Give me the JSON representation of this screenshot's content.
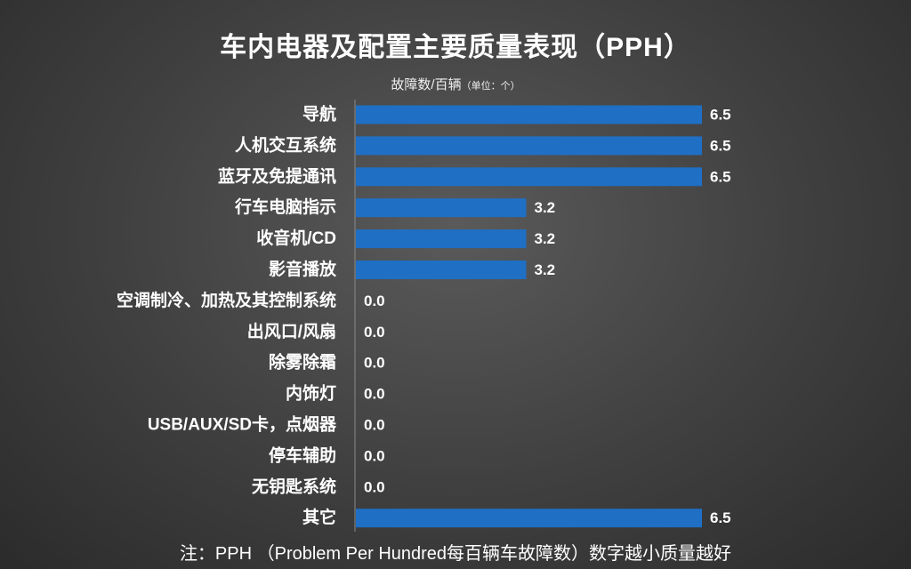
{
  "chart_data": {
    "type": "bar",
    "orientation": "horizontal",
    "title": "车内电器及配置主要质量表现（PPH）",
    "subtitle_main": "故障数/百辆",
    "subtitle_unit": "（单位：个）",
    "note": "注：PPH （Problem Per Hundred每百辆车故障数）数字越小质量越好",
    "categories": [
      "导航",
      "人机交互系统",
      "蓝牙及免提通讯",
      "行车电脑指示",
      "收音机/CD",
      "影音播放",
      "空调制冷、加热及其控制系统",
      "出风口/风扇",
      "除雾除霜",
      "内饰灯",
      "USB/AUX/SD卡，点烟器",
      "停车辅助",
      "无钥匙系统",
      "其它"
    ],
    "values": [
      6.5,
      6.5,
      6.5,
      3.2,
      3.2,
      3.2,
      0.0,
      0.0,
      0.0,
      0.0,
      0.0,
      0.0,
      0.0,
      6.5
    ],
    "value_labels": [
      "6.5",
      "6.5",
      "6.5",
      "3.2",
      "3.2",
      "3.2",
      "0.0",
      "0.0",
      "0.0",
      "0.0",
      "0.0",
      "0.0",
      "0.0",
      "6.5"
    ],
    "xlim": [
      0,
      6.5
    ],
    "grid": false,
    "legend": "none",
    "bar_color": "#1f6fc5"
  }
}
